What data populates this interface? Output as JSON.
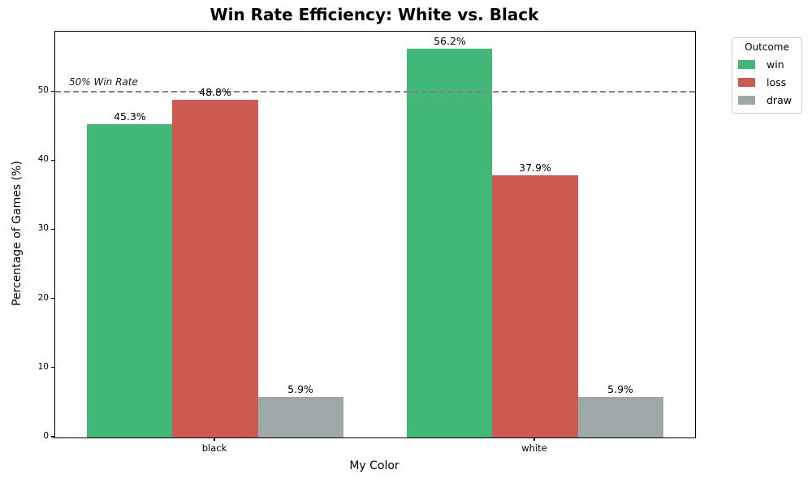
{
  "chart_data": {
    "type": "bar",
    "title": "Win Rate Efficiency: White vs. Black",
    "xlabel": "My Color",
    "ylabel": "Percentage of Games (%)",
    "categories": [
      "black",
      "white"
    ],
    "series": [
      {
        "name": "win",
        "color": "#41b877",
        "values": [
          45.3,
          56.2
        ],
        "labels": [
          "45.3%",
          "56.2%"
        ]
      },
      {
        "name": "loss",
        "color": "#cd5b51",
        "values": [
          48.8,
          37.9
        ],
        "labels": [
          "48.8%",
          "37.9%"
        ]
      },
      {
        "name": "draw",
        "color": "#9fa8a8",
        "values": [
          5.9,
          5.9
        ],
        "labels": [
          "5.9%",
          "5.9%"
        ]
      }
    ],
    "ylim": [
      0,
      58.7
    ],
    "yticks": [
      0,
      10,
      20,
      30,
      40,
      50
    ],
    "reference_line": {
      "y": 50,
      "label": "50% Win Rate",
      "color": "#828282",
      "style": "dashed"
    },
    "legend": {
      "title": "Outcome",
      "entries": [
        "win",
        "loss",
        "draw"
      ],
      "position": "upper-right-outside"
    },
    "grid": false
  }
}
